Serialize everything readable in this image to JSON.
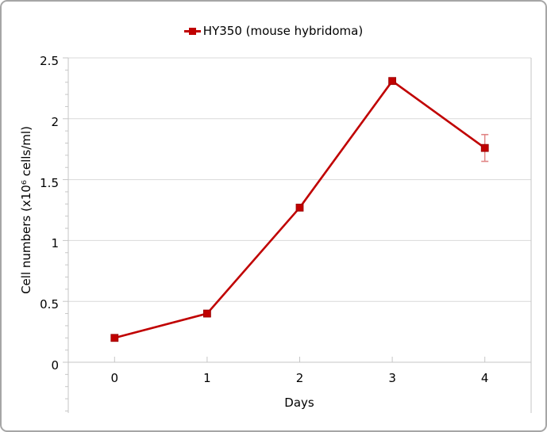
{
  "window": {
    "background": "#ffffff",
    "border_color": "#a6a6a6"
  },
  "chart_data": {
    "type": "line",
    "title": "",
    "legend_position": "top",
    "xlabel": "Days",
    "ylabel": "Cell numbers (x10⁶ cells/ml)",
    "x": [
      0,
      1,
      2,
      3,
      4
    ],
    "x_tick_labels": [
      "0",
      "1",
      "2",
      "3",
      "4"
    ],
    "y_tick_labels": [
      "0",
      "0.5",
      "1",
      "1.5",
      "2",
      "2.5"
    ],
    "ylim": [
      0,
      2.5
    ],
    "y_major_step": 0.5,
    "y_minor_step": 0.1,
    "y_axis_underhang": 0.4,
    "grid": "horizontal-major",
    "series": [
      {
        "name": "HY350 (mouse hybridoma)",
        "values": [
          0.2,
          0.4,
          1.27,
          2.31,
          1.76
        ],
        "error_bars": [
          0,
          0,
          0,
          0,
          0.11
        ],
        "marker": "square",
        "color": "#c00000",
        "marker_edge_color": "#970000",
        "error_bar_color": "#e08484"
      }
    ],
    "colors": {
      "gridline": "#d9d9d9",
      "axis_line": "#c6c6c6",
      "tick": "#c6c6c6",
      "text": "#000000"
    }
  }
}
